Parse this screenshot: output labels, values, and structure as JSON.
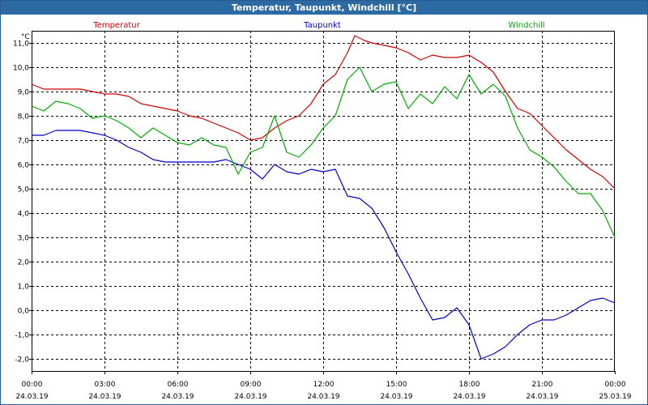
{
  "window": {
    "title": "Temperatur, Taupunkt, Windchill [°C]"
  },
  "chart_data": {
    "type": "line",
    "title": "Temperatur, Taupunkt, Windchill [°C]",
    "ylabel": "°C",
    "xlabel": "",
    "ylim": [
      -2.5,
      11.5
    ],
    "xlim": [
      0,
      24
    ],
    "yticks": [
      -2.0,
      -1.0,
      0.0,
      1.0,
      2.0,
      3.0,
      4.0,
      5.0,
      6.0,
      7.0,
      8.0,
      9.0,
      10.0,
      11.0
    ],
    "ytick_labels": [
      "-2,0",
      "-1,0",
      "0,0",
      "1,0",
      "2,0",
      "3,0",
      "4,0",
      "5,0",
      "6,0",
      "7,0",
      "8,0",
      "9,0",
      "10,0",
      "11,0"
    ],
    "xticks": [
      {
        "hour": 0,
        "time": "00:00",
        "date": "24.03.19"
      },
      {
        "hour": 3,
        "time": "03:00",
        "date": "24.03.19"
      },
      {
        "hour": 6,
        "time": "06:00",
        "date": "24.03.19"
      },
      {
        "hour": 9,
        "time": "09:00",
        "date": "24.03.19"
      },
      {
        "hour": 12,
        "time": "12:00",
        "date": "24.03.19"
      },
      {
        "hour": 15,
        "time": "15:00",
        "date": "24.03.19"
      },
      {
        "hour": 18,
        "time": "18:00",
        "date": "24.03.19"
      },
      {
        "hour": 21,
        "time": "21:00",
        "date": "24.03.19"
      },
      {
        "hour": 24,
        "time": "00:00",
        "date": "25.03.19"
      }
    ],
    "grid": true,
    "legend_placement": "top",
    "series": [
      {
        "name": "Temperatur",
        "color": "#d00000",
        "x": [
          0,
          0.5,
          1,
          1.5,
          2,
          2.5,
          3,
          3.5,
          4,
          4.5,
          5,
          5.5,
          6,
          6.5,
          7,
          7.5,
          8,
          8.5,
          9,
          9.5,
          10,
          10.5,
          11,
          11.5,
          12,
          12.5,
          13,
          13.3,
          13.7,
          14,
          14.5,
          15,
          15.5,
          16,
          16.5,
          17,
          17.5,
          18,
          18.5,
          19,
          19.5,
          20,
          20.5,
          21,
          21.5,
          22,
          22.5,
          23,
          23.5,
          24
        ],
        "y": [
          9.3,
          9.1,
          9.1,
          9.1,
          9.1,
          9.0,
          8.9,
          8.9,
          8.8,
          8.5,
          8.4,
          8.3,
          8.2,
          8.0,
          7.9,
          7.7,
          7.5,
          7.3,
          7.0,
          7.1,
          7.5,
          7.8,
          8.0,
          8.5,
          9.3,
          9.7,
          10.6,
          11.3,
          11.1,
          11.0,
          10.9,
          10.8,
          10.6,
          10.3,
          10.5,
          10.4,
          10.4,
          10.5,
          10.2,
          9.8,
          9.0,
          8.3,
          8.1,
          7.6,
          7.1,
          6.6,
          6.2,
          5.8,
          5.5,
          5.0
        ]
      },
      {
        "name": "Taupunkt",
        "color": "#0000cc",
        "x": [
          0,
          0.5,
          1,
          1.5,
          2,
          2.5,
          3,
          3.5,
          4,
          4.5,
          5,
          5.5,
          6,
          6.5,
          7,
          7.5,
          8,
          8.5,
          9,
          9.5,
          10,
          10.5,
          11,
          11.5,
          12,
          12.5,
          13,
          13.5,
          14,
          14.5,
          15,
          15.5,
          16,
          16.5,
          17,
          17.5,
          18,
          18.5,
          19,
          19.5,
          20,
          20.5,
          21,
          21.5,
          22,
          22.5,
          23,
          23.5,
          24
        ],
        "y": [
          7.2,
          7.2,
          7.4,
          7.4,
          7.4,
          7.3,
          7.2,
          7.0,
          6.7,
          6.5,
          6.2,
          6.1,
          6.1,
          6.1,
          6.1,
          6.1,
          6.2,
          6.0,
          5.8,
          5.4,
          6.0,
          5.7,
          5.6,
          5.8,
          5.7,
          5.8,
          4.7,
          4.6,
          4.2,
          3.4,
          2.4,
          1.5,
          0.5,
          -0.4,
          -0.3,
          0.1,
          -0.6,
          -2.0,
          -1.8,
          -1.5,
          -1.0,
          -0.6,
          -0.4,
          -0.4,
          -0.2,
          0.1,
          0.4,
          0.5,
          0.3
        ]
      },
      {
        "name": "Windchill",
        "color": "#00aa00",
        "x": [
          0,
          0.5,
          1,
          1.5,
          2,
          2.5,
          3,
          3.5,
          4,
          4.5,
          5,
          5.5,
          6,
          6.5,
          7,
          7.5,
          8,
          8.5,
          9,
          9.5,
          10,
          10.5,
          11,
          11.5,
          12,
          12.5,
          13,
          13.5,
          14,
          14.5,
          15,
          15.5,
          16,
          16.5,
          17,
          17.5,
          18,
          18.5,
          19,
          19.5,
          20,
          20.5,
          21,
          21.5,
          22,
          22.5,
          23,
          23.5,
          24
        ],
        "y": [
          8.4,
          8.2,
          8.6,
          8.5,
          8.3,
          7.9,
          8.0,
          7.8,
          7.5,
          7.1,
          7.5,
          7.2,
          6.9,
          6.8,
          7.1,
          6.8,
          6.7,
          5.6,
          6.5,
          6.7,
          8.0,
          6.5,
          6.3,
          6.8,
          7.5,
          8.0,
          9.5,
          10.0,
          9.0,
          9.3,
          9.4,
          8.3,
          8.9,
          8.5,
          9.2,
          8.7,
          9.7,
          8.9,
          9.3,
          8.8,
          7.5,
          6.6,
          6.3,
          5.9,
          5.3,
          4.8,
          4.8,
          4.1,
          3.0
        ]
      }
    ]
  }
}
